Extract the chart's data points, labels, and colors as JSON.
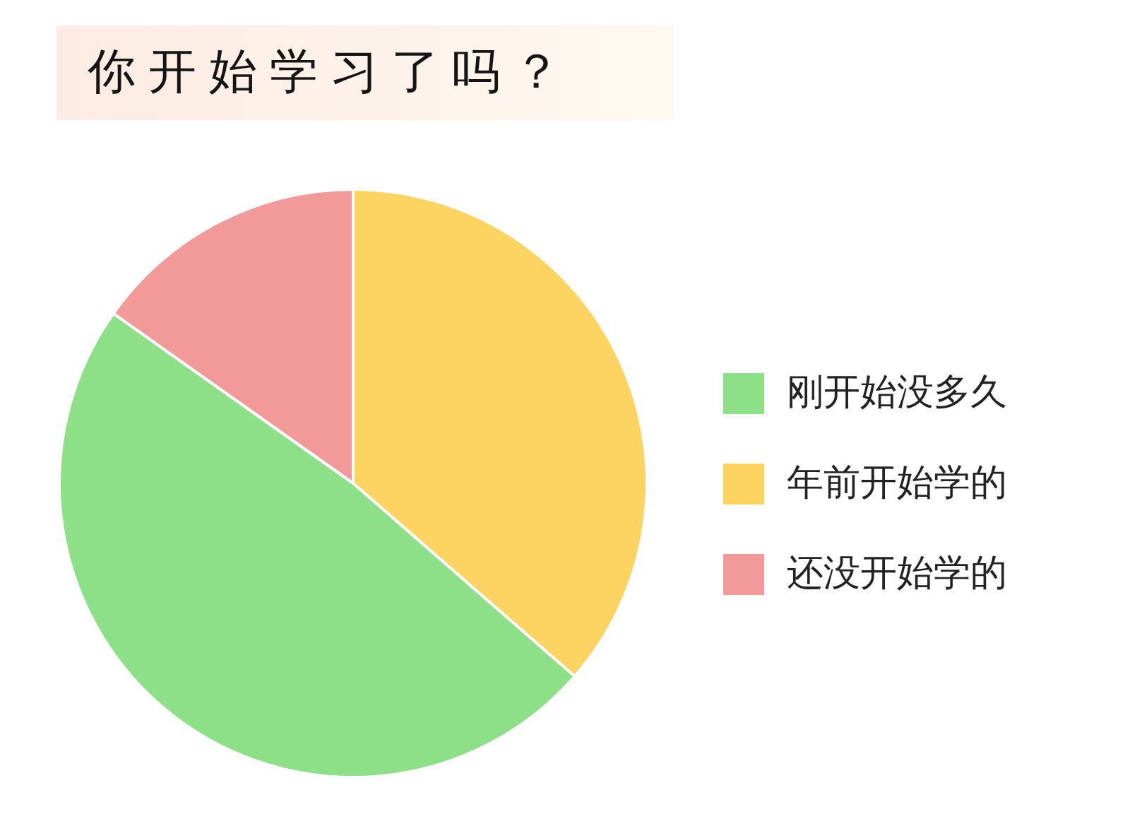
{
  "chart_data": {
    "type": "pie",
    "title": "你开始学习了吗？",
    "categories": [
      "刚开始没多久",
      "年前开始学的",
      "还没开始学的"
    ],
    "values": [
      48.4,
      36.4,
      15.2
    ],
    "colors": [
      "#8ddf88",
      "#fdd462",
      "#f19a99"
    ],
    "legend": "right"
  }
}
